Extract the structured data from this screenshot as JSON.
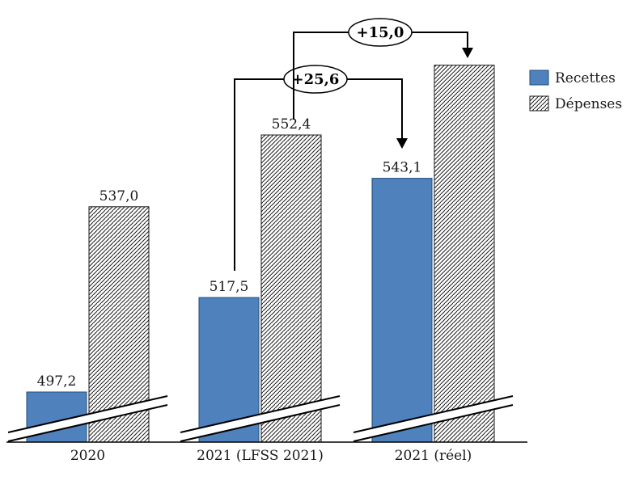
{
  "colors": {
    "recettes": "#4f81bd",
    "recettes_border": "#1f4e79",
    "hatch_line": "#1a1a1a",
    "axis": "#000000"
  },
  "legend": {
    "recettes": "Recettes",
    "depenses": "Dépenses"
  },
  "chart_data": {
    "type": "bar",
    "categories": [
      "2020",
      "2021 (LFSS 2021)",
      "2021 (réel)"
    ],
    "series": [
      {
        "name": "Recettes",
        "values": [
          497.2,
          517.5,
          543.1
        ]
      },
      {
        "name": "Dépenses",
        "values": [
          537.0,
          552.4,
          567.4
        ]
      }
    ],
    "value_labels": [
      [
        "497,2",
        "517,5",
        "543,1"
      ],
      [
        "537,0",
        "552,4",
        null
      ]
    ],
    "annotations": [
      {
        "label": "+25,6"
      },
      {
        "label": "+15,0"
      }
    ],
    "title": "",
    "xlabel": "",
    "ylabel": "",
    "axis_break": true,
    "grid": false,
    "legend_position": "top-right"
  }
}
